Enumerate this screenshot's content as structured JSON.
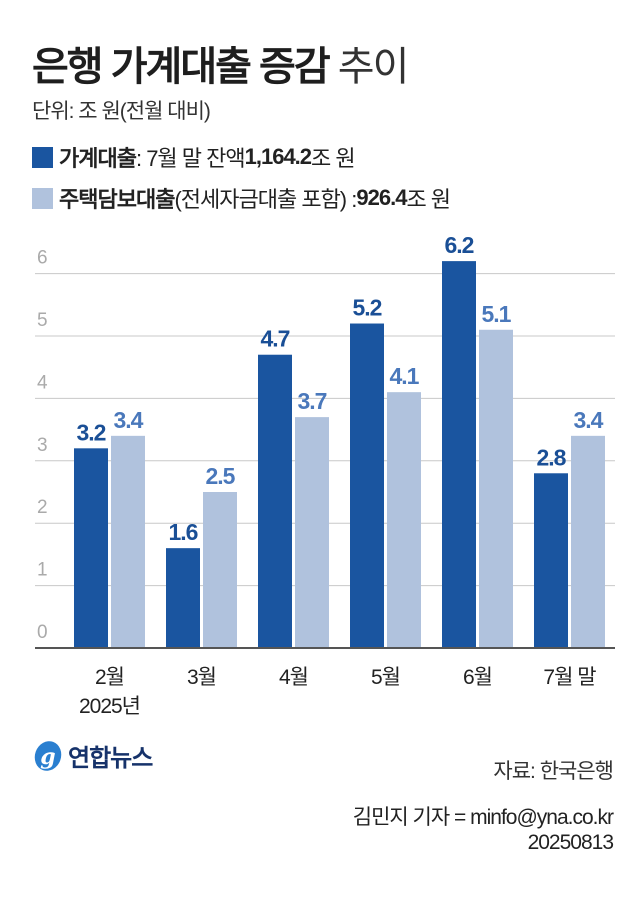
{
  "header": {
    "title_bold": "은행 가계대출 증감",
    "title_light": "추이",
    "unit": "단위: 조 원(전월 대비)"
  },
  "legend": [
    {
      "name_bold": "가계대출",
      "desc": " : 7월 말 잔액 ",
      "value_bold": "1,164.2",
      "suffix": "조 원",
      "color": "#1a55a0"
    },
    {
      "name_bold": "주택담보대출",
      "desc": "(전세자금대출 포함) : ",
      "value_bold": "926.4",
      "suffix": "조 원",
      "color": "#b0c2dd"
    }
  ],
  "footer": {
    "logo": "연합뉴스",
    "source": "자료: 한국은행",
    "reporter": "김민지 기자 = minfo@yna.co.kr",
    "date": "20250813"
  },
  "colors": {
    "series1": "#1a55a0",
    "series2": "#b0c2dd",
    "label1": "#1a4f96",
    "label2": "#4a78bb",
    "grid": "#c8c8c8",
    "axis": "#555555",
    "tick": "#aaaaaa"
  },
  "chart_data": {
    "type": "bar",
    "title": "은행 가계대출 증감 추이",
    "subtitle": "단위: 조 원(전월 대비)",
    "categories": [
      "2월",
      "3월",
      "4월",
      "5월",
      "6월",
      "7월 말"
    ],
    "category_sublabels": [
      "2025년",
      "",
      "",
      "",
      "",
      ""
    ],
    "series": [
      {
        "name": "가계대출",
        "values": [
          3.2,
          1.6,
          4.7,
          5.2,
          6.2,
          2.8
        ]
      },
      {
        "name": "주택담보대출(전세자금대출 포함)",
        "values": [
          3.4,
          2.5,
          3.7,
          4.1,
          5.1,
          3.4
        ]
      }
    ],
    "xlabel": "",
    "ylabel": "",
    "ylim": [
      0,
      6
    ],
    "yticks": [
      0,
      1,
      2,
      3,
      4,
      5,
      6
    ],
    "grid": true,
    "legend_position": "top-left"
  }
}
